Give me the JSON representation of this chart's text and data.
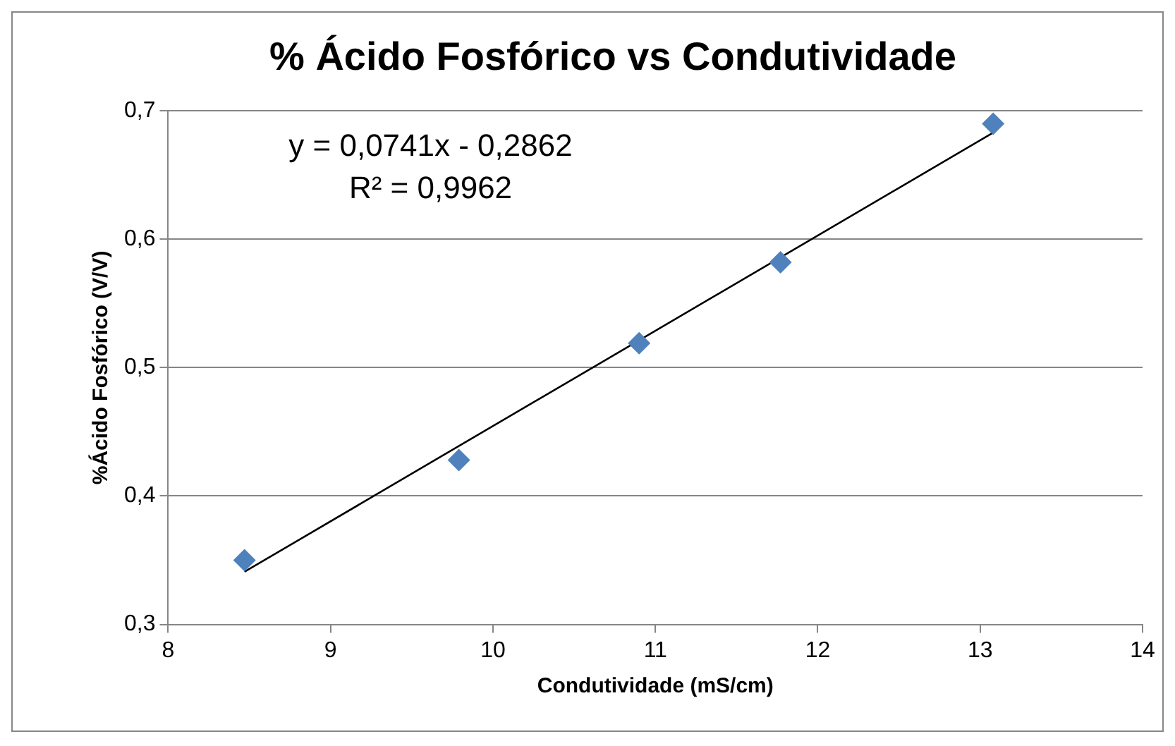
{
  "chart_data": {
    "type": "scatter",
    "title": "% Ácido Fosfórico vs Condutividade",
    "xlabel": "Condutividade (mS/cm)",
    "ylabel": "%Ácido Fosfórico (V/V)",
    "annotations": [
      "y = 0,0741x - 0,2862",
      "R² = 0,9962"
    ],
    "xlim": [
      8,
      14
    ],
    "xticks": [
      8,
      9,
      10,
      11,
      12,
      13,
      14
    ],
    "ylim": [
      0.3,
      0.7
    ],
    "yticks": [
      {
        "value": 0.3,
        "label": "0,3"
      },
      {
        "value": 0.4,
        "label": "0,4"
      },
      {
        "value": 0.5,
        "label": "0,5"
      },
      {
        "value": 0.6,
        "label": "0,6"
      },
      {
        "value": 0.7,
        "label": "0,7"
      }
    ],
    "grid": "y",
    "legend": false,
    "marker": "diamond",
    "series": [
      {
        "type": "scatter",
        "color": "#4f81bd",
        "x": [
          8.47,
          9.79,
          10.9,
          11.77,
          13.08
        ],
        "values": [
          0.35,
          0.428,
          0.519,
          0.582,
          0.69
        ]
      },
      {
        "type": "line",
        "color": "#000000",
        "marker": "none",
        "x": [
          8.47,
          13.08
        ],
        "values": [
          0.341,
          0.683
        ]
      }
    ]
  }
}
